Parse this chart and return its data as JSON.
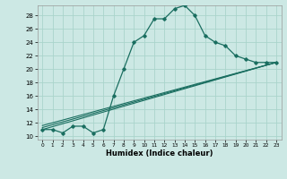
{
  "xlabel": "Humidex (Indice chaleur)",
  "ylabel": "",
  "bg_color": "#cce8e4",
  "grid_color": "#aad4cc",
  "line_color": "#1a6e60",
  "xlim": [
    -0.5,
    23.5
  ],
  "ylim": [
    9.5,
    29.5
  ],
  "xticks": [
    0,
    1,
    2,
    3,
    4,
    5,
    6,
    7,
    8,
    9,
    10,
    11,
    12,
    13,
    14,
    15,
    16,
    17,
    18,
    19,
    20,
    21,
    22,
    23
  ],
  "yticks": [
    10,
    12,
    14,
    16,
    18,
    20,
    22,
    24,
    26,
    28
  ],
  "main_x": [
    0,
    1,
    2,
    3,
    4,
    5,
    6,
    7,
    8,
    9,
    10,
    11,
    12,
    13,
    14,
    15,
    16,
    17,
    18,
    19,
    20,
    21,
    22,
    23
  ],
  "main_y": [
    11,
    11,
    10.5,
    11.5,
    11.5,
    10.5,
    11,
    16,
    20,
    24,
    25,
    27.5,
    27.5,
    29,
    29.5,
    28,
    25,
    24,
    23.5,
    22,
    21.5,
    21,
    21,
    21
  ],
  "line2_x": [
    0,
    23
  ],
  "line2_y": [
    11,
    21
  ],
  "line3_x": [
    0,
    23
  ],
  "line3_y": [
    11.3,
    21
  ],
  "line4_x": [
    0,
    23
  ],
  "line4_y": [
    11.6,
    21
  ]
}
